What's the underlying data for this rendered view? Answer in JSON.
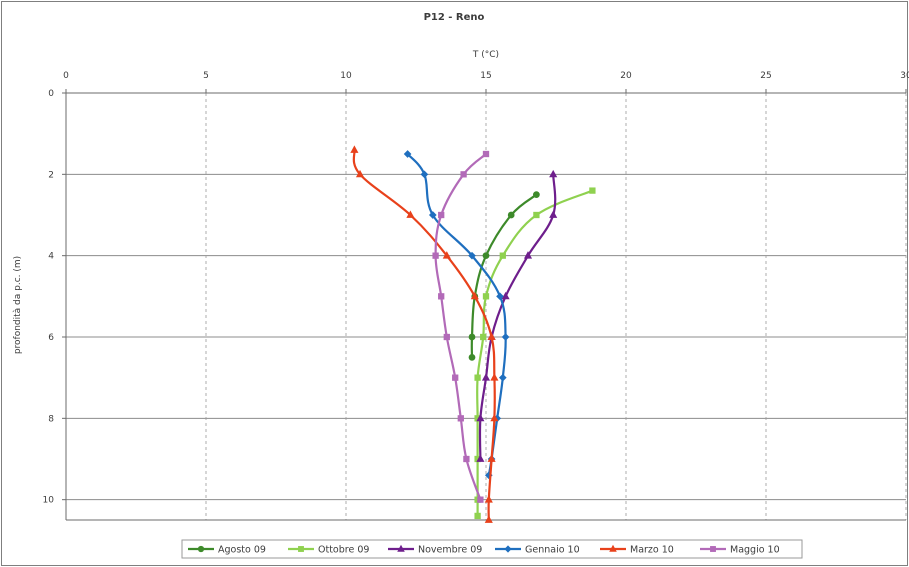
{
  "chart_data": {
    "type": "line",
    "title": "P12 - Reno",
    "xlabel": "T (°C)",
    "ylabel": "profondità da p.c. (m)",
    "xlim": [
      0,
      30
    ],
    "ylim": [
      0,
      10.5
    ],
    "y_inverted": true,
    "x_axis_position": "top",
    "x_ticks": [
      0,
      5,
      10,
      15,
      20,
      25,
      30
    ],
    "y_ticks": [
      0,
      2,
      4,
      6,
      8,
      10
    ],
    "grid": "x dashed, y solid",
    "legend_position": "bottom",
    "series": [
      {
        "name": "Agosto 09",
        "color": "#3d8a2a",
        "marker": "circle",
        "points": [
          [
            16.8,
            2.5
          ],
          [
            15.9,
            3.0
          ],
          [
            15.0,
            4.0
          ],
          [
            14.6,
            5.0
          ],
          [
            14.5,
            6.0
          ],
          [
            14.5,
            6.5
          ]
        ]
      },
      {
        "name": "Ottobre 09",
        "color": "#8fd14f",
        "marker": "square",
        "points": [
          [
            18.8,
            2.4
          ],
          [
            16.8,
            3.0
          ],
          [
            15.6,
            4.0
          ],
          [
            15.0,
            5.0
          ],
          [
            14.9,
            6.0
          ],
          [
            14.7,
            7.0
          ],
          [
            14.7,
            8.0
          ],
          [
            14.7,
            9.0
          ],
          [
            14.7,
            10.0
          ],
          [
            14.7,
            10.4
          ]
        ]
      },
      {
        "name": "Novembre 09",
        "color": "#6e1e8c",
        "marker": "triangle",
        "points": [
          [
            17.4,
            2.0
          ],
          [
            17.4,
            3.0
          ],
          [
            16.5,
            4.0
          ],
          [
            15.7,
            5.0
          ],
          [
            15.2,
            6.0
          ],
          [
            15.0,
            7.0
          ],
          [
            14.8,
            8.0
          ],
          [
            14.8,
            9.0
          ]
        ]
      },
      {
        "name": "Gennaio 10",
        "color": "#1f6fbf",
        "marker": "diamond",
        "points": [
          [
            12.2,
            1.5
          ],
          [
            12.8,
            2.0
          ],
          [
            13.1,
            3.0
          ],
          [
            14.5,
            4.0
          ],
          [
            15.5,
            5.0
          ],
          [
            15.7,
            6.0
          ],
          [
            15.6,
            7.0
          ],
          [
            15.4,
            8.0
          ],
          [
            15.2,
            9.0
          ],
          [
            15.1,
            9.4
          ]
        ]
      },
      {
        "name": "Marzo 10",
        "color": "#e8411b",
        "marker": "triangle",
        "points": [
          [
            10.3,
            1.4
          ],
          [
            10.5,
            2.0
          ],
          [
            12.3,
            3.0
          ],
          [
            13.6,
            4.0
          ],
          [
            14.6,
            5.0
          ],
          [
            15.2,
            6.0
          ],
          [
            15.3,
            7.0
          ],
          [
            15.3,
            8.0
          ],
          [
            15.2,
            9.0
          ],
          [
            15.1,
            10.0
          ],
          [
            15.1,
            10.5
          ]
        ]
      },
      {
        "name": "Maggio 10",
        "color": "#b26ab8",
        "marker": "square",
        "points": [
          [
            15.0,
            1.5
          ],
          [
            14.2,
            2.0
          ],
          [
            13.4,
            3.0
          ],
          [
            13.2,
            4.0
          ],
          [
            13.4,
            5.0
          ],
          [
            13.6,
            6.0
          ],
          [
            13.9,
            7.0
          ],
          [
            14.1,
            8.0
          ],
          [
            14.3,
            9.0
          ],
          [
            14.8,
            10.0
          ]
        ]
      }
    ]
  }
}
